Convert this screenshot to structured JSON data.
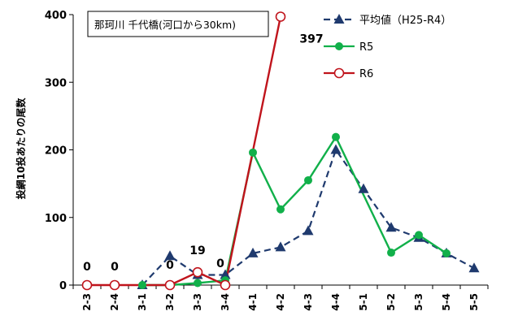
{
  "chart_data": {
    "type": "line",
    "title": "那珂川 千代橋(河口から30km)",
    "ylabel": "投網10投あたりの尾数",
    "xlabel": "",
    "categories": [
      "2-3",
      "2-4",
      "3-1",
      "3-2",
      "3-3",
      "3-4",
      "4-1",
      "4-2",
      "4-3",
      "4-4",
      "5-1",
      "5-2",
      "5-3",
      "5-4",
      "5-5"
    ],
    "ylim": [
      0,
      400
    ],
    "yticks": [
      0,
      100,
      200,
      300,
      400
    ],
    "grid": false,
    "legend_position": "top-right",
    "series": [
      {
        "name": "平均値（H25-R4）",
        "color": "#1F3A6E",
        "style": "dashed",
        "marker": "triangle",
        "values": [
          null,
          null,
          0,
          43,
          15,
          15,
          47,
          56,
          80,
          200,
          142,
          85,
          70,
          47,
          25
        ]
      },
      {
        "name": "R5",
        "color": "#11B04A",
        "style": "solid",
        "marker": "circle-filled",
        "values": [
          null,
          null,
          0,
          0,
          3,
          7,
          196,
          112,
          155,
          219,
          null,
          48,
          74,
          47,
          null
        ]
      },
      {
        "name": "R6",
        "color": "#C0141C",
        "style": "solid",
        "marker": "circle-open",
        "values": [
          0,
          0,
          null,
          0,
          19,
          0,
          null,
          397,
          null,
          null,
          null,
          null,
          null,
          null,
          null
        ]
      }
    ],
    "annotations": [
      {
        "category": "2-3",
        "series": "R6",
        "text": "0"
      },
      {
        "category": "2-4",
        "series": "R6",
        "text": "0"
      },
      {
        "category": "3-2",
        "series": "R6",
        "text": "0"
      },
      {
        "category": "3-3",
        "series": "R6",
        "text": "19"
      },
      {
        "category": "3-4",
        "series": "R6",
        "text": "0"
      },
      {
        "category": "4-2",
        "series": "R6",
        "text": "397"
      }
    ]
  }
}
